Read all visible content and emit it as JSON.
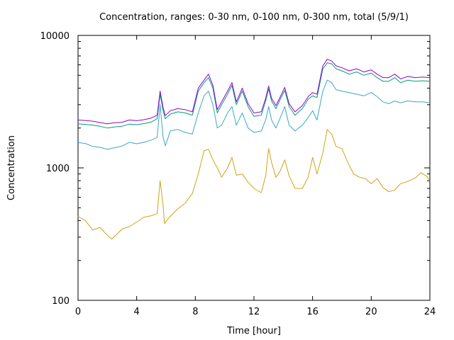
{
  "chart_data": {
    "type": "line",
    "title": "Concentration, ranges: 0-30 nm, 0-100 nm, 0-300 nm, total (5/9/1)",
    "xlabel": "Time [hour]",
    "ylabel": "Concentration",
    "xlim": [
      0,
      24
    ],
    "ylim": [
      100,
      10000
    ],
    "y_scale": "log",
    "x_ticks": [
      0,
      4,
      8,
      12,
      16,
      20,
      24
    ],
    "x_tick_labels": [
      "0",
      "4",
      "8",
      "12",
      "16",
      "20",
      "24"
    ],
    "y_ticks": [
      100,
      1000,
      10000
    ],
    "y_tick_labels": [
      "100",
      "1000",
      "10000"
    ],
    "grid": false,
    "legend": "none",
    "series": [
      {
        "color": "#d4a017",
        "points": [
          [
            0,
            430
          ],
          [
            0.5,
            400
          ],
          [
            1,
            340
          ],
          [
            1.5,
            355
          ],
          [
            2,
            310
          ],
          [
            2.3,
            290
          ],
          [
            2.7,
            320
          ],
          [
            3,
            345
          ],
          [
            3.5,
            360
          ],
          [
            4,
            390
          ],
          [
            4.5,
            425
          ],
          [
            5,
            435
          ],
          [
            5.4,
            450
          ],
          [
            5.6,
            800
          ],
          [
            5.8,
            520
          ],
          [
            5.9,
            380
          ],
          [
            6.2,
            420
          ],
          [
            6.8,
            490
          ],
          [
            7.3,
            540
          ],
          [
            7.8,
            640
          ],
          [
            8.2,
            900
          ],
          [
            8.6,
            1350
          ],
          [
            8.9,
            1380
          ],
          [
            9.2,
            1150
          ],
          [
            9.5,
            1000
          ],
          [
            9.8,
            850
          ],
          [
            10.2,
            1000
          ],
          [
            10.5,
            1200
          ],
          [
            10.8,
            880
          ],
          [
            11.2,
            900
          ],
          [
            11.6,
            780
          ],
          [
            12,
            700
          ],
          [
            12.5,
            650
          ],
          [
            12.8,
            870
          ],
          [
            13,
            1400
          ],
          [
            13.2,
            1100
          ],
          [
            13.5,
            850
          ],
          [
            13.8,
            950
          ],
          [
            14.1,
            1150
          ],
          [
            14.4,
            870
          ],
          [
            14.8,
            700
          ],
          [
            15.3,
            700
          ],
          [
            15.7,
            850
          ],
          [
            16,
            1200
          ],
          [
            16.3,
            900
          ],
          [
            16.7,
            1300
          ],
          [
            17,
            1950
          ],
          [
            17.3,
            1800
          ],
          [
            17.6,
            1450
          ],
          [
            18,
            1400
          ],
          [
            18.4,
            1100
          ],
          [
            18.8,
            900
          ],
          [
            19.2,
            850
          ],
          [
            19.6,
            830
          ],
          [
            20,
            760
          ],
          [
            20.4,
            830
          ],
          [
            20.8,
            710
          ],
          [
            21.2,
            660
          ],
          [
            21.6,
            680
          ],
          [
            22,
            760
          ],
          [
            22.5,
            790
          ],
          [
            23,
            840
          ],
          [
            23.4,
            920
          ],
          [
            23.8,
            860
          ],
          [
            24,
            800
          ]
        ]
      },
      {
        "color": "#3ba7c8",
        "points": [
          [
            0,
            1550
          ],
          [
            0.5,
            1530
          ],
          [
            1,
            1450
          ],
          [
            1.5,
            1430
          ],
          [
            2,
            1380
          ],
          [
            2.5,
            1420
          ],
          [
            3,
            1460
          ],
          [
            3.5,
            1560
          ],
          [
            4,
            1520
          ],
          [
            4.5,
            1560
          ],
          [
            5,
            1620
          ],
          [
            5.4,
            1700
          ],
          [
            5.6,
            3000
          ],
          [
            5.8,
            1700
          ],
          [
            5.95,
            1470
          ],
          [
            6.3,
            1900
          ],
          [
            6.8,
            1950
          ],
          [
            7.3,
            1850
          ],
          [
            7.8,
            1800
          ],
          [
            8.2,
            2600
          ],
          [
            8.6,
            3500
          ],
          [
            8.9,
            3800
          ],
          [
            9.2,
            3000
          ],
          [
            9.5,
            2000
          ],
          [
            9.8,
            2100
          ],
          [
            10.2,
            2600
          ],
          [
            10.5,
            2900
          ],
          [
            10.8,
            2100
          ],
          [
            11.2,
            2600
          ],
          [
            11.6,
            2000
          ],
          [
            12,
            1850
          ],
          [
            12.5,
            1900
          ],
          [
            12.8,
            2300
          ],
          [
            13,
            2900
          ],
          [
            13.2,
            2300
          ],
          [
            13.5,
            2000
          ],
          [
            13.8,
            2400
          ],
          [
            14.1,
            2900
          ],
          [
            14.4,
            2100
          ],
          [
            14.8,
            1900
          ],
          [
            15.3,
            2100
          ],
          [
            15.7,
            2400
          ],
          [
            16,
            2700
          ],
          [
            16.3,
            2300
          ],
          [
            16.7,
            3800
          ],
          [
            17,
            4600
          ],
          [
            17.3,
            4400
          ],
          [
            17.6,
            3900
          ],
          [
            18,
            3800
          ],
          [
            18.5,
            3700
          ],
          [
            19,
            3600
          ],
          [
            19.5,
            3500
          ],
          [
            20,
            3700
          ],
          [
            20.4,
            3450
          ],
          [
            20.8,
            3150
          ],
          [
            21.2,
            3050
          ],
          [
            21.6,
            3200
          ],
          [
            22,
            3100
          ],
          [
            22.5,
            3200
          ],
          [
            23,
            3150
          ],
          [
            23.5,
            3150
          ],
          [
            24,
            3100
          ]
        ]
      },
      {
        "color": "#009e73",
        "points": [
          [
            0,
            2150
          ],
          [
            0.5,
            2130
          ],
          [
            1,
            2100
          ],
          [
            1.5,
            2060
          ],
          [
            2,
            2000
          ],
          [
            2.5,
            2040
          ],
          [
            3,
            2060
          ],
          [
            3.5,
            2140
          ],
          [
            4,
            2120
          ],
          [
            4.5,
            2160
          ],
          [
            5,
            2220
          ],
          [
            5.4,
            2350
          ],
          [
            5.6,
            3600
          ],
          [
            5.8,
            2700
          ],
          [
            5.95,
            2350
          ],
          [
            6.3,
            2550
          ],
          [
            6.8,
            2650
          ],
          [
            7.3,
            2600
          ],
          [
            7.8,
            2500
          ],
          [
            8.2,
            3800
          ],
          [
            8.6,
            4400
          ],
          [
            8.9,
            4800
          ],
          [
            9.2,
            4000
          ],
          [
            9.5,
            2600
          ],
          [
            9.8,
            3000
          ],
          [
            10.2,
            3600
          ],
          [
            10.5,
            4200
          ],
          [
            10.8,
            3000
          ],
          [
            11.2,
            3800
          ],
          [
            11.6,
            2900
          ],
          [
            12,
            2450
          ],
          [
            12.5,
            2500
          ],
          [
            12.8,
            3200
          ],
          [
            13,
            3950
          ],
          [
            13.2,
            3200
          ],
          [
            13.5,
            2800
          ],
          [
            13.8,
            3300
          ],
          [
            14.1,
            3850
          ],
          [
            14.4,
            2900
          ],
          [
            14.8,
            2500
          ],
          [
            15.3,
            2800
          ],
          [
            15.7,
            3300
          ],
          [
            16,
            3500
          ],
          [
            16.3,
            3400
          ],
          [
            16.7,
            5600
          ],
          [
            17,
            6200
          ],
          [
            17.3,
            6100
          ],
          [
            17.6,
            5600
          ],
          [
            18,
            5400
          ],
          [
            18.5,
            5100
          ],
          [
            19,
            5300
          ],
          [
            19.5,
            5000
          ],
          [
            20,
            5200
          ],
          [
            20.4,
            4800
          ],
          [
            20.8,
            4500
          ],
          [
            21.2,
            4500
          ],
          [
            21.6,
            4800
          ],
          [
            22,
            4400
          ],
          [
            22.5,
            4600
          ],
          [
            23,
            4500
          ],
          [
            23.5,
            4550
          ],
          [
            24,
            4500
          ]
        ]
      },
      {
        "color": "#9400d3",
        "points": [
          [
            0,
            2300
          ],
          [
            0.5,
            2280
          ],
          [
            1,
            2250
          ],
          [
            1.5,
            2200
          ],
          [
            2,
            2150
          ],
          [
            2.5,
            2190
          ],
          [
            3,
            2210
          ],
          [
            3.5,
            2300
          ],
          [
            4,
            2270
          ],
          [
            4.5,
            2310
          ],
          [
            5,
            2380
          ],
          [
            5.4,
            2500
          ],
          [
            5.6,
            3800
          ],
          [
            5.8,
            2850
          ],
          [
            5.95,
            2480
          ],
          [
            6.3,
            2700
          ],
          [
            6.8,
            2800
          ],
          [
            7.3,
            2750
          ],
          [
            7.8,
            2650
          ],
          [
            8.2,
            4000
          ],
          [
            8.6,
            4600
          ],
          [
            8.9,
            5100
          ],
          [
            9.2,
            4200
          ],
          [
            9.5,
            2750
          ],
          [
            9.8,
            3150
          ],
          [
            10.2,
            3800
          ],
          [
            10.5,
            4400
          ],
          [
            10.8,
            3150
          ],
          [
            11.2,
            4000
          ],
          [
            11.6,
            3050
          ],
          [
            12,
            2600
          ],
          [
            12.5,
            2650
          ],
          [
            12.8,
            3350
          ],
          [
            13,
            4150
          ],
          [
            13.2,
            3350
          ],
          [
            13.5,
            2950
          ],
          [
            13.8,
            3450
          ],
          [
            14.1,
            4050
          ],
          [
            14.4,
            3050
          ],
          [
            14.8,
            2650
          ],
          [
            15.3,
            2950
          ],
          [
            15.7,
            3450
          ],
          [
            16,
            3700
          ],
          [
            16.3,
            3600
          ],
          [
            16.7,
            5900
          ],
          [
            17,
            6600
          ],
          [
            17.3,
            6400
          ],
          [
            17.6,
            5900
          ],
          [
            18,
            5700
          ],
          [
            18.5,
            5400
          ],
          [
            19,
            5600
          ],
          [
            19.5,
            5300
          ],
          [
            20,
            5500
          ],
          [
            20.4,
            5100
          ],
          [
            20.8,
            4800
          ],
          [
            21.2,
            4800
          ],
          [
            21.6,
            5100
          ],
          [
            22,
            4700
          ],
          [
            22.5,
            4900
          ],
          [
            23,
            4800
          ],
          [
            23.5,
            4850
          ],
          [
            24,
            4800
          ]
        ]
      }
    ]
  }
}
